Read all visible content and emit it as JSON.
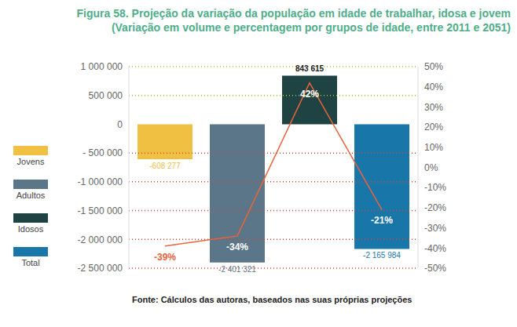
{
  "chart_data": {
    "type": "bar",
    "title": "Figura 58. Projeção da variação da população em idade de trabalhar, idosa e jovem",
    "subtitle": "(Variação em volume e percentagem por grupos de idade, entre 2011 e 2051)",
    "source": "Fonte: Cálculos das autoras, baseados nas suas próprias projeções",
    "categories": [
      "Jovens",
      "Adultos",
      "Idosos",
      "Total"
    ],
    "series": [
      {
        "type": "bar",
        "colors": [
          "#f0c043",
          "#5b7688",
          "#1f4242",
          "#1976a8"
        ],
        "values": [
          -608277,
          -2401321,
          843615,
          -2165984
        ],
        "value_labels": [
          "-608 277",
          "-2 401 321",
          "843 615",
          "-2 165 984"
        ]
      },
      {
        "type": "line",
        "axis": "y2",
        "color": "#e8643c",
        "values": [
          -39,
          -34,
          42,
          -21
        ],
        "value_labels": [
          "-39%",
          "-34%",
          "42%",
          "-21%"
        ]
      }
    ],
    "ylim": [
      -2500000,
      1000000
    ],
    "yticks": [
      {
        "value": -2500000,
        "label": "-2 500 000"
      },
      {
        "value": -2000000,
        "label": "-2 000 000"
      },
      {
        "value": -1500000,
        "label": "-1 500 000"
      },
      {
        "value": -1000000,
        "label": "-1 000 000"
      },
      {
        "value": -500000,
        "label": "- 500 000"
      },
      0,
      {
        "value": 500000,
        "label": "500 000"
      },
      {
        "value": 1000000,
        "label": "1 000 000"
      }
    ],
    "y2lim": [
      -50,
      50
    ],
    "y2ticks": [
      {
        "value": -50,
        "label": "-50%"
      },
      {
        "value": -40,
        "label": "-40%"
      },
      {
        "value": -30,
        "label": "-30%"
      },
      {
        "value": -20,
        "label": "-20%"
      },
      {
        "value": -10,
        "label": "-10%"
      },
      {
        "value": 0,
        "label": "0%"
      },
      {
        "value": 10,
        "label": "10%"
      },
      {
        "value": 20,
        "label": "20%"
      },
      {
        "value": 30,
        "label": "30%"
      },
      {
        "value": 40,
        "label": "40%"
      },
      {
        "value": 50,
        "label": "50%"
      }
    ],
    "grid": true,
    "legend": "left",
    "data_labels": true,
    "tick_labels": "y"
  }
}
